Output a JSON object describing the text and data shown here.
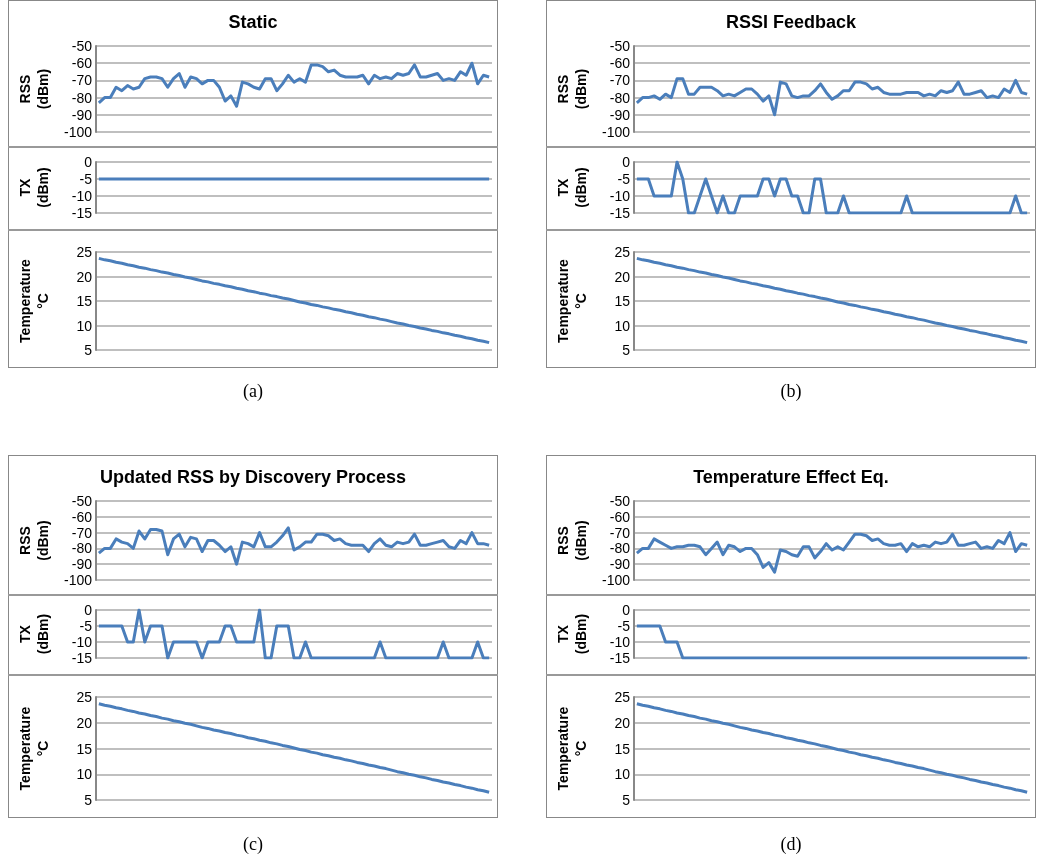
{
  "chart_data": [
    {
      "type": "line",
      "title": "Static",
      "ylabel": "RSS\n(dBm)",
      "categories": [
        null,
        null,
        null,
        null,
        null,
        null,
        null,
        null,
        null,
        null,
        null,
        null,
        null,
        null,
        null,
        null,
        null,
        null,
        null,
        null,
        null,
        null,
        null,
        null,
        null,
        null,
        null,
        null,
        null,
        null,
        null,
        null,
        null,
        null,
        null,
        null,
        null,
        null,
        null,
        null,
        null,
        null,
        null,
        null,
        null,
        null,
        null,
        null,
        null,
        null,
        null,
        null,
        null,
        null,
        null,
        null,
        null,
        null,
        null,
        null,
        null,
        null,
        null,
        null,
        null,
        null,
        null,
        null,
        null
      ],
      "color": "#4a7ebb",
      "marker": "none",
      "grid": "y",
      "ylim": [
        -100,
        -50
      ],
      "yticks": [
        -100,
        -90,
        -80,
        -70,
        -60,
        -50
      ],
      "values": [
        -83,
        -80,
        -80,
        -74,
        -76,
        -73,
        -75,
        -74,
        -69,
        -68,
        -68,
        -69,
        -74,
        -69,
        -66,
        -74,
        -68,
        -69,
        -72,
        -70,
        -70,
        -74,
        -82,
        -79,
        -85,
        -71,
        -72,
        -74,
        -75,
        -69,
        -69,
        -76,
        -72,
        -67,
        -71,
        -69,
        -71,
        -61,
        -61,
        -62,
        -65,
        -64,
        -67,
        -68,
        -68,
        -68,
        -67,
        -72,
        -67,
        -69,
        -68,
        -69,
        -66,
        -67,
        -66,
        -61,
        -68,
        -68,
        -67,
        -66,
        -70,
        -69,
        -70,
        -65,
        -67,
        -60,
        -72,
        -67,
        -68
      ]
    },
    {
      "type": "line",
      "ylabel": "TX\n(dBm)",
      "categories": [
        null,
        null,
        null,
        null,
        null,
        null,
        null,
        null,
        null,
        null,
        null,
        null,
        null,
        null,
        null,
        null,
        null,
        null,
        null,
        null,
        null,
        null,
        null,
        null,
        null,
        null,
        null,
        null,
        null,
        null,
        null,
        null,
        null,
        null,
        null,
        null,
        null,
        null,
        null,
        null,
        null,
        null,
        null,
        null,
        null,
        null,
        null,
        null,
        null,
        null,
        null,
        null,
        null,
        null,
        null,
        null,
        null,
        null,
        null,
        null,
        null,
        null,
        null,
        null,
        null,
        null,
        null,
        null,
        null
      ],
      "color": "#4a7ebb",
      "marker": "none",
      "grid": "y",
      "ylim": [
        -15,
        0
      ],
      "yticks": [
        -15,
        -10,
        -5,
        0
      ],
      "values": [
        -5,
        -5,
        -5,
        -5,
        -5,
        -5,
        -5,
        -5,
        -5,
        -5,
        -5,
        -5,
        -5,
        -5,
        -5,
        -5,
        -5,
        -5,
        -5,
        -5,
        -5,
        -5,
        -5,
        -5,
        -5,
        -5,
        -5,
        -5,
        -5,
        -5,
        -5,
        -5,
        -5,
        -5,
        -5,
        -5,
        -5,
        -5,
        -5,
        -5,
        -5,
        -5,
        -5,
        -5,
        -5,
        -5,
        -5,
        -5,
        -5,
        -5,
        -5,
        -5,
        -5,
        -5,
        -5,
        -5,
        -5,
        -5,
        -5,
        -5,
        -5,
        -5,
        -5,
        -5,
        -5,
        -5,
        -5,
        -5,
        -5
      ]
    },
    {
      "type": "line",
      "ylabel": "Temperature\n°C",
      "categories": [
        null,
        null,
        null,
        null,
        null,
        null,
        null,
        null,
        null,
        null,
        null,
        null,
        null,
        null,
        null,
        null,
        null,
        null,
        null,
        null,
        null,
        null,
        null,
        null,
        null,
        null,
        null,
        null,
        null,
        null,
        null,
        null,
        null,
        null,
        null,
        null,
        null,
        null,
        null,
        null,
        null,
        null,
        null,
        null,
        null,
        null,
        null,
        null,
        null,
        null,
        null,
        null,
        null,
        null,
        null,
        null,
        null,
        null,
        null,
        null,
        null,
        null,
        null,
        null,
        null,
        null,
        null,
        null,
        null
      ],
      "color": "#4a7ebb",
      "marker": "none",
      "grid": "y",
      "ylim": [
        5,
        25
      ],
      "yticks": [
        5,
        10,
        15,
        20,
        25
      ],
      "values": [
        23.7,
        23.4,
        23.2,
        22.9,
        22.7,
        22.4,
        22.2,
        21.9,
        21.7,
        21.4,
        21.2,
        20.9,
        20.7,
        20.4,
        20.2,
        19.9,
        19.7,
        19.4,
        19.1,
        18.9,
        18.6,
        18.4,
        18.1,
        17.9,
        17.6,
        17.4,
        17.1,
        16.9,
        16.6,
        16.4,
        16.1,
        15.9,
        15.6,
        15.4,
        15.1,
        14.8,
        14.6,
        14.3,
        14.1,
        13.8,
        13.6,
        13.3,
        13.1,
        12.8,
        12.6,
        12.3,
        12.1,
        11.8,
        11.6,
        11.3,
        11.1,
        10.8,
        10.5,
        10.3,
        10.0,
        9.8,
        9.5,
        9.3,
        9.0,
        8.8,
        8.5,
        8.3,
        8.0,
        7.8,
        7.5,
        7.3,
        7.0,
        6.8,
        6.5
      ],
      "annotations": [
        "(a)"
      ]
    },
    {
      "type": "line",
      "title": "RSSI Feedback",
      "ylabel": "RSS\n(dBm)",
      "categories": [
        null,
        null,
        null,
        null,
        null,
        null,
        null,
        null,
        null,
        null,
        null,
        null,
        null,
        null,
        null,
        null,
        null,
        null,
        null,
        null,
        null,
        null,
        null,
        null,
        null,
        null,
        null,
        null,
        null,
        null,
        null,
        null,
        null,
        null,
        null,
        null,
        null,
        null,
        null,
        null,
        null,
        null,
        null,
        null,
        null,
        null,
        null,
        null,
        null,
        null,
        null,
        null,
        null,
        null,
        null,
        null,
        null,
        null,
        null,
        null,
        null,
        null,
        null,
        null,
        null,
        null,
        null,
        null,
        null
      ],
      "color": "#4a7ebb",
      "marker": "none",
      "grid": "y",
      "ylim": [
        -100,
        -50
      ],
      "yticks": [
        -100,
        -90,
        -80,
        -70,
        -60,
        -50
      ],
      "values": [
        -83,
        -80,
        -80,
        -79,
        -81,
        -78,
        -80,
        -69,
        -69,
        -78,
        -78,
        -74,
        -74,
        -74,
        -76,
        -79,
        -78,
        -79,
        -77,
        -75,
        -75,
        -78,
        -82,
        -79,
        -90,
        -71,
        -72,
        -79,
        -80,
        -79,
        -79,
        -76,
        -72,
        -77,
        -81,
        -79,
        -76,
        -76,
        -71,
        -71,
        -72,
        -75,
        -74,
        -77,
        -78,
        -78,
        -78,
        -77,
        -77,
        -77,
        -79,
        -78,
        -79,
        -76,
        -77,
        -76,
        -71,
        -78,
        -78,
        -77,
        -76,
        -80,
        -79,
        -80,
        -75,
        -77,
        -70,
        -77,
        -78
      ]
    },
    {
      "type": "line",
      "ylabel": "TX\n(dBm)",
      "categories": [
        null,
        null,
        null,
        null,
        null,
        null,
        null,
        null,
        null,
        null,
        null,
        null,
        null,
        null,
        null,
        null,
        null,
        null,
        null,
        null,
        null,
        null,
        null,
        null,
        null,
        null,
        null,
        null,
        null,
        null,
        null,
        null,
        null,
        null,
        null,
        null,
        null,
        null,
        null,
        null,
        null,
        null,
        null,
        null,
        null,
        null,
        null,
        null,
        null,
        null,
        null,
        null,
        null,
        null,
        null,
        null,
        null,
        null,
        null,
        null,
        null,
        null,
        null,
        null,
        null,
        null,
        null,
        null,
        null
      ],
      "color": "#4a7ebb",
      "marker": "none",
      "grid": "y",
      "ylim": [
        -15,
        0
      ],
      "yticks": [
        -15,
        -10,
        -5,
        0
      ],
      "values": [
        -5,
        -5,
        -5,
        -10,
        -10,
        -10,
        -10,
        0,
        -5,
        -15,
        -15,
        -10,
        -5,
        -10,
        -15,
        -10,
        -15,
        -15,
        -10,
        -10,
        -10,
        -10,
        -5,
        -5,
        -10,
        -5,
        -5,
        -10,
        -10,
        -15,
        -15,
        -5,
        -5,
        -15,
        -15,
        -15,
        -10,
        -15,
        -15,
        -15,
        -15,
        -15,
        -15,
        -15,
        -15,
        -15,
        -15,
        -10,
        -15,
        -15,
        -15,
        -15,
        -15,
        -15,
        -15,
        -15,
        -15,
        -15,
        -15,
        -15,
        -15,
        -15,
        -15,
        -15,
        -15,
        -15,
        -10,
        -15,
        -15
      ]
    },
    {
      "type": "line",
      "ylabel": "Temperature\n°C",
      "categories": [
        null,
        null,
        null,
        null,
        null,
        null,
        null,
        null,
        null,
        null,
        null,
        null,
        null,
        null,
        null,
        null,
        null,
        null,
        null,
        null,
        null,
        null,
        null,
        null,
        null,
        null,
        null,
        null,
        null,
        null,
        null,
        null,
        null,
        null,
        null,
        null,
        null,
        null,
        null,
        null,
        null,
        null,
        null,
        null,
        null,
        null,
        null,
        null,
        null,
        null,
        null,
        null,
        null,
        null,
        null,
        null,
        null,
        null,
        null,
        null,
        null,
        null,
        null,
        null,
        null,
        null,
        null,
        null,
        null
      ],
      "color": "#4a7ebb",
      "marker": "none",
      "grid": "y",
      "ylim": [
        5,
        25
      ],
      "yticks": [
        5,
        10,
        15,
        20,
        25
      ],
      "values": [
        23.7,
        23.4,
        23.2,
        22.9,
        22.7,
        22.4,
        22.2,
        21.9,
        21.7,
        21.4,
        21.2,
        20.9,
        20.7,
        20.4,
        20.2,
        19.9,
        19.7,
        19.4,
        19.1,
        18.9,
        18.6,
        18.4,
        18.1,
        17.9,
        17.6,
        17.4,
        17.1,
        16.9,
        16.6,
        16.4,
        16.1,
        15.9,
        15.6,
        15.4,
        15.1,
        14.8,
        14.6,
        14.3,
        14.1,
        13.8,
        13.6,
        13.3,
        13.1,
        12.8,
        12.6,
        12.3,
        12.1,
        11.8,
        11.6,
        11.3,
        11.1,
        10.8,
        10.5,
        10.3,
        10.0,
        9.8,
        9.5,
        9.3,
        9.0,
        8.8,
        8.5,
        8.3,
        8.0,
        7.8,
        7.5,
        7.3,
        7.0,
        6.8,
        6.5
      ],
      "annotations": [
        "(b)"
      ]
    },
    {
      "type": "line",
      "title": "Updated RSS by Discovery Process",
      "ylabel": "RSS\n(dBm)",
      "categories": [
        null,
        null,
        null,
        null,
        null,
        null,
        null,
        null,
        null,
        null,
        null,
        null,
        null,
        null,
        null,
        null,
        null,
        null,
        null,
        null,
        null,
        null,
        null,
        null,
        null,
        null,
        null,
        null,
        null,
        null,
        null,
        null,
        null,
        null,
        null,
        null,
        null,
        null,
        null,
        null,
        null,
        null,
        null,
        null,
        null,
        null,
        null,
        null,
        null,
        null,
        null,
        null,
        null,
        null,
        null,
        null,
        null,
        null,
        null,
        null,
        null,
        null,
        null,
        null,
        null,
        null,
        null,
        null,
        null
      ],
      "color": "#4a7ebb",
      "marker": "none",
      "grid": "y",
      "ylim": [
        -100,
        -50
      ],
      "yticks": [
        -100,
        -90,
        -80,
        -70,
        -60,
        -50
      ],
      "values": [
        -83,
        -80,
        -80,
        -74,
        -76,
        -77,
        -80,
        -69,
        -74,
        -68,
        -68,
        -69,
        -84,
        -74,
        -71,
        -79,
        -73,
        -74,
        -82,
        -75,
        -75,
        -78,
        -82,
        -79,
        -90,
        -76,
        -77,
        -79,
        -70,
        -79,
        -79,
        -76,
        -72,
        -67,
        -81,
        -79,
        -76,
        -76,
        -71,
        -71,
        -72,
        -75,
        -74,
        -77,
        -78,
        -78,
        -78,
        -82,
        -77,
        -74,
        -78,
        -79,
        -76,
        -77,
        -76,
        -71,
        -78,
        -78,
        -77,
        -76,
        -75,
        -79,
        -80,
        -75,
        -77,
        -70,
        -77,
        -77,
        -78
      ]
    },
    {
      "type": "line",
      "ylabel": "TX\n(dBm)",
      "categories": [
        null,
        null,
        null,
        null,
        null,
        null,
        null,
        null,
        null,
        null,
        null,
        null,
        null,
        null,
        null,
        null,
        null,
        null,
        null,
        null,
        null,
        null,
        null,
        null,
        null,
        null,
        null,
        null,
        null,
        null,
        null,
        null,
        null,
        null,
        null,
        null,
        null,
        null,
        null,
        null,
        null,
        null,
        null,
        null,
        null,
        null,
        null,
        null,
        null,
        null,
        null,
        null,
        null,
        null,
        null,
        null,
        null,
        null,
        null,
        null,
        null,
        null,
        null,
        null,
        null,
        null,
        null,
        null,
        null
      ],
      "color": "#4a7ebb",
      "marker": "none",
      "grid": "y",
      "ylim": [
        -15,
        0
      ],
      "yticks": [
        -15,
        -10,
        -5,
        0
      ],
      "values": [
        -5,
        -5,
        -5,
        -5,
        -5,
        -10,
        -10,
        0,
        -10,
        -5,
        -5,
        -5,
        -15,
        -10,
        -10,
        -10,
        -10,
        -10,
        -15,
        -10,
        -10,
        -10,
        -5,
        -5,
        -10,
        -10,
        -10,
        -10,
        0,
        -15,
        -15,
        -5,
        -5,
        -5,
        -15,
        -15,
        -10,
        -15,
        -15,
        -15,
        -15,
        -15,
        -15,
        -15,
        -15,
        -15,
        -15,
        -15,
        -15,
        -10,
        -15,
        -15,
        -15,
        -15,
        -15,
        -15,
        -15,
        -15,
        -15,
        -15,
        -10,
        -15,
        -15,
        -15,
        -15,
        -15,
        -10,
        -15,
        -15
      ]
    },
    {
      "type": "line",
      "ylabel": "Temperature\n°C",
      "categories": [
        null,
        null,
        null,
        null,
        null,
        null,
        null,
        null,
        null,
        null,
        null,
        null,
        null,
        null,
        null,
        null,
        null,
        null,
        null,
        null,
        null,
        null,
        null,
        null,
        null,
        null,
        null,
        null,
        null,
        null,
        null,
        null,
        null,
        null,
        null,
        null,
        null,
        null,
        null,
        null,
        null,
        null,
        null,
        null,
        null,
        null,
        null,
        null,
        null,
        null,
        null,
        null,
        null,
        null,
        null,
        null,
        null,
        null,
        null,
        null,
        null,
        null,
        null,
        null,
        null,
        null,
        null,
        null,
        null
      ],
      "color": "#4a7ebb",
      "marker": "none",
      "grid": "y",
      "ylim": [
        5,
        25
      ],
      "yticks": [
        5,
        10,
        15,
        20,
        25
      ],
      "values": [
        23.7,
        23.4,
        23.2,
        22.9,
        22.7,
        22.4,
        22.2,
        21.9,
        21.7,
        21.4,
        21.2,
        20.9,
        20.7,
        20.4,
        20.2,
        19.9,
        19.7,
        19.4,
        19.1,
        18.9,
        18.6,
        18.4,
        18.1,
        17.9,
        17.6,
        17.4,
        17.1,
        16.9,
        16.6,
        16.4,
        16.1,
        15.9,
        15.6,
        15.4,
        15.1,
        14.8,
        14.6,
        14.3,
        14.1,
        13.8,
        13.6,
        13.3,
        13.1,
        12.8,
        12.6,
        12.3,
        12.1,
        11.8,
        11.6,
        11.3,
        11.1,
        10.8,
        10.5,
        10.3,
        10.0,
        9.8,
        9.5,
        9.3,
        9.0,
        8.8,
        8.5,
        8.3,
        8.0,
        7.8,
        7.5,
        7.3,
        7.0,
        6.8,
        6.5
      ],
      "annotations": [
        "(c)"
      ]
    },
    {
      "type": "line",
      "title": "Temperature Effect Eq.",
      "ylabel": "RSS\n(dBm)",
      "categories": [
        null,
        null,
        null,
        null,
        null,
        null,
        null,
        null,
        null,
        null,
        null,
        null,
        null,
        null,
        null,
        null,
        null,
        null,
        null,
        null,
        null,
        null,
        null,
        null,
        null,
        null,
        null,
        null,
        null,
        null,
        null,
        null,
        null,
        null,
        null,
        null,
        null,
        null,
        null,
        null,
        null,
        null,
        null,
        null,
        null,
        null,
        null,
        null,
        null,
        null,
        null,
        null,
        null,
        null,
        null,
        null,
        null,
        null,
        null,
        null,
        null,
        null,
        null,
        null,
        null,
        null,
        null,
        null,
        null
      ],
      "color": "#4a7ebb",
      "marker": "none",
      "grid": "y",
      "ylim": [
        -100,
        -50
      ],
      "yticks": [
        -100,
        -90,
        -80,
        -70,
        -60,
        -50
      ],
      "values": [
        -83,
        -80,
        -80,
        -74,
        -76,
        -78,
        -80,
        -79,
        -79,
        -78,
        -78,
        -79,
        -84,
        -80,
        -76,
        -84,
        -78,
        -79,
        -82,
        -80,
        -80,
        -84,
        -92,
        -89,
        -95,
        -81,
        -82,
        -84,
        -85,
        -79,
        -79,
        -86,
        -82,
        -77,
        -81,
        -79,
        -81,
        -76,
        -71,
        -71,
        -72,
        -75,
        -74,
        -77,
        -78,
        -78,
        -77,
        -82,
        -77,
        -79,
        -78,
        -79,
        -76,
        -77,
        -76,
        -71,
        -78,
        -78,
        -77,
        -76,
        -80,
        -79,
        -80,
        -75,
        -77,
        -70,
        -82,
        -77,
        -78
      ]
    },
    {
      "type": "line",
      "ylabel": "TX\n(dBm)",
      "categories": [
        null,
        null,
        null,
        null,
        null,
        null,
        null,
        null,
        null,
        null,
        null,
        null,
        null,
        null,
        null,
        null,
        null,
        null,
        null,
        null,
        null,
        null,
        null,
        null,
        null,
        null,
        null,
        null,
        null,
        null,
        null,
        null,
        null,
        null,
        null,
        null,
        null,
        null,
        null,
        null,
        null,
        null,
        null,
        null,
        null,
        null,
        null,
        null,
        null,
        null,
        null,
        null,
        null,
        null,
        null,
        null,
        null,
        null,
        null,
        null,
        null,
        null,
        null,
        null,
        null,
        null,
        null,
        null,
        null
      ],
      "color": "#4a7ebb",
      "marker": "none",
      "grid": "y",
      "ylim": [
        -15,
        0
      ],
      "yticks": [
        -15,
        -10,
        -5,
        0
      ],
      "values": [
        -5,
        -5,
        -5,
        -5,
        -5,
        -10,
        -10,
        -10,
        -15,
        -15,
        -15,
        -15,
        -15,
        -15,
        -15,
        -15,
        -15,
        -15,
        -15,
        -15,
        -15,
        -15,
        -15,
        -15,
        -15,
        -15,
        -15,
        -15,
        -15,
        -15,
        -15,
        -15,
        -15,
        -15,
        -15,
        -15,
        -15,
        -15,
        -15,
        -15,
        -15,
        -15,
        -15,
        -15,
        -15,
        -15,
        -15,
        -15,
        -15,
        -15,
        -15,
        -15,
        -15,
        -15,
        -15,
        -15,
        -15,
        -15,
        -15,
        -15,
        -15,
        -15,
        -15,
        -15,
        -15,
        -15,
        -15,
        -15,
        -15
      ]
    },
    {
      "type": "line",
      "ylabel": "Temperature\n°C",
      "categories": [
        null,
        null,
        null,
        null,
        null,
        null,
        null,
        null,
        null,
        null,
        null,
        null,
        null,
        null,
        null,
        null,
        null,
        null,
        null,
        null,
        null,
        null,
        null,
        null,
        null,
        null,
        null,
        null,
        null,
        null,
        null,
        null,
        null,
        null,
        null,
        null,
        null,
        null,
        null,
        null,
        null,
        null,
        null,
        null,
        null,
        null,
        null,
        null,
        null,
        null,
        null,
        null,
        null,
        null,
        null,
        null,
        null,
        null,
        null,
        null,
        null,
        null,
        null,
        null,
        null,
        null,
        null,
        null,
        null
      ],
      "color": "#4a7ebb",
      "marker": "none",
      "grid": "y",
      "ylim": [
        5,
        25
      ],
      "yticks": [
        5,
        10,
        15,
        20,
        25
      ],
      "values": [
        23.7,
        23.4,
        23.2,
        22.9,
        22.7,
        22.4,
        22.2,
        21.9,
        21.7,
        21.4,
        21.2,
        20.9,
        20.7,
        20.4,
        20.2,
        19.9,
        19.7,
        19.4,
        19.1,
        18.9,
        18.6,
        18.4,
        18.1,
        17.9,
        17.6,
        17.4,
        17.1,
        16.9,
        16.6,
        16.4,
        16.1,
        15.9,
        15.6,
        15.4,
        15.1,
        14.8,
        14.6,
        14.3,
        14.1,
        13.8,
        13.6,
        13.3,
        13.1,
        12.8,
        12.6,
        12.3,
        12.1,
        11.8,
        11.6,
        11.3,
        11.1,
        10.8,
        10.5,
        10.3,
        10.0,
        9.8,
        9.5,
        9.3,
        9.0,
        8.8,
        8.5,
        8.3,
        8.0,
        7.8,
        7.5,
        7.3,
        7.0,
        6.8,
        6.5
      ],
      "annotations": [
        "(d)"
      ]
    }
  ]
}
